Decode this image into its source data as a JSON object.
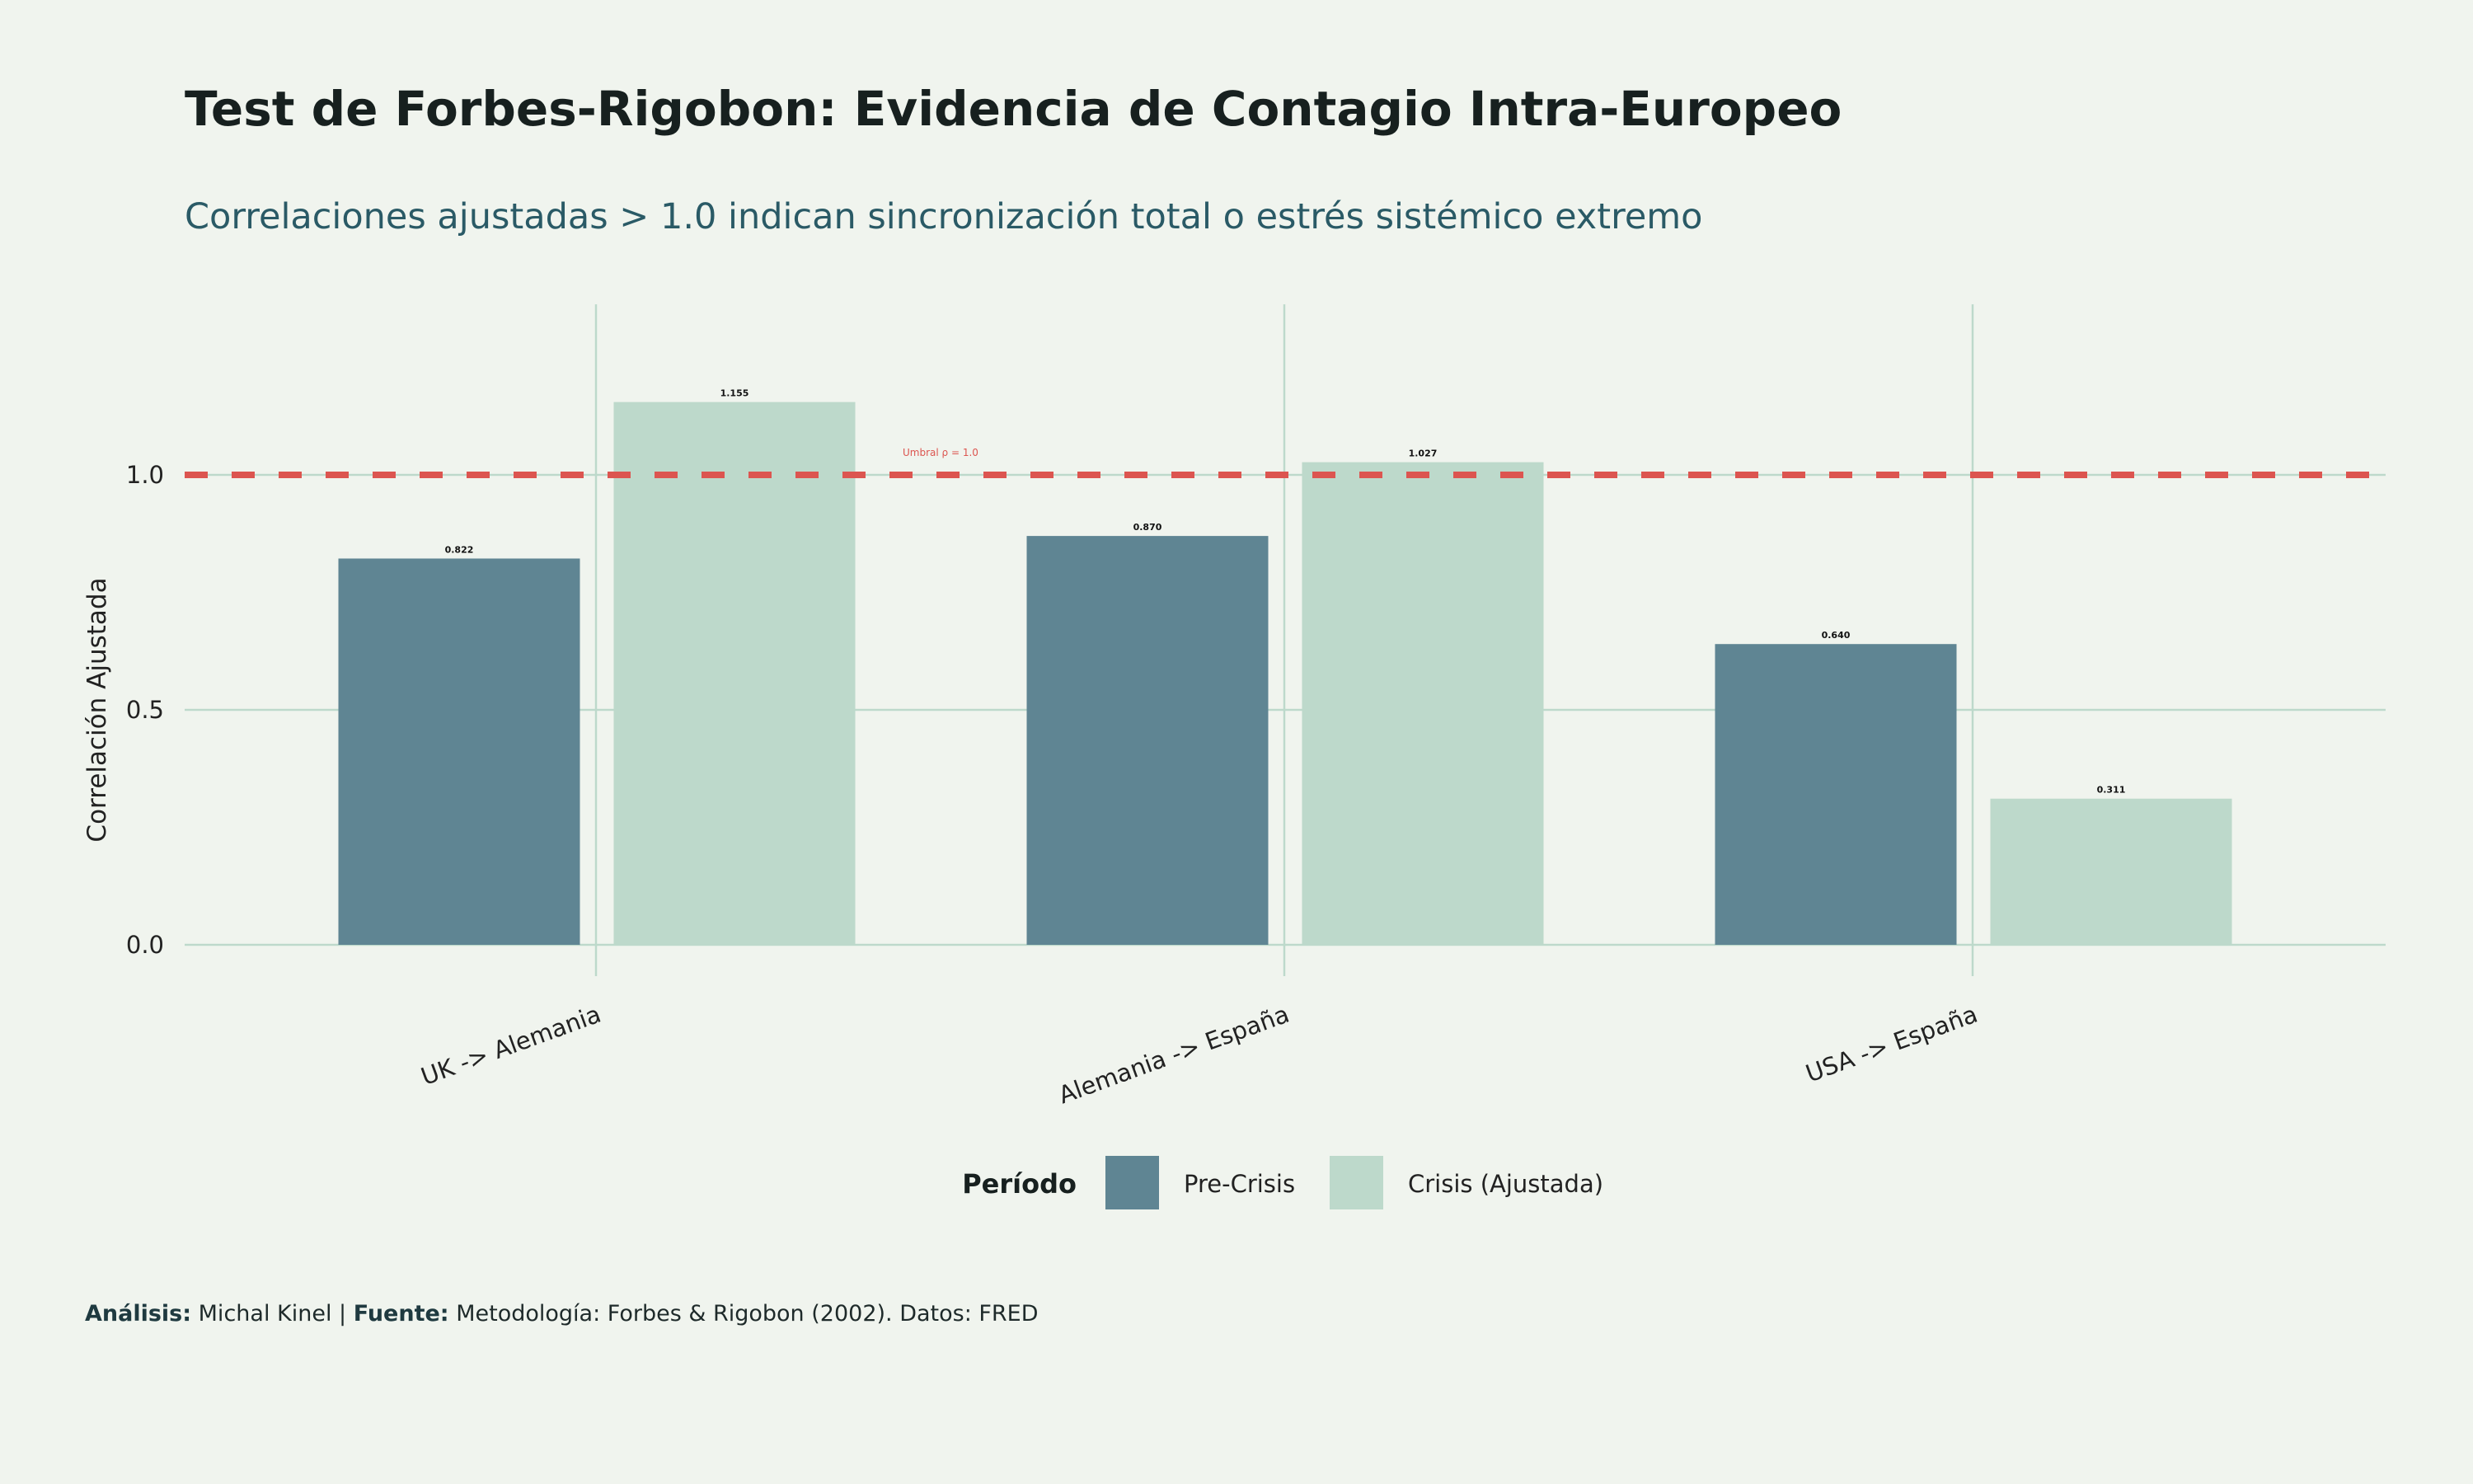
{
  "chart_data": {
    "type": "bar",
    "title": "Test de Forbes-Rigobon: Evidencia de Contagio Intra-Europeo",
    "subtitle": "Correlaciones ajustadas > 1.0 indican sincronización total o estrés sistémico extremo",
    "xlabel": "",
    "ylabel": "Correlación Ajustada",
    "categories": [
      "UK -> Alemania",
      "Alemania -> España",
      "USA -> España"
    ],
    "series": [
      {
        "name": "Pre-Crisis",
        "color": "#5f8593",
        "values": [
          0.822,
          0.87,
          0.64
        ],
        "labels": [
          "0.822",
          "0.870",
          "0.640"
        ]
      },
      {
        "name": "Crisis (Ajustada)",
        "color": "#bdd9cb",
        "values": [
          1.155,
          1.027,
          0.311
        ],
        "labels": [
          "1.155",
          "1.027",
          "0.311"
        ]
      }
    ],
    "yticks": [
      0.0,
      0.5,
      1.0
    ],
    "ytick_labels": [
      "0.0",
      "0.5",
      "1.0"
    ],
    "ylim": [
      0,
      1.363
    ],
    "grid": true,
    "threshold": {
      "value": 1.0,
      "label": "Umbral ρ = 1.0",
      "color": "#dc5550"
    },
    "legend": {
      "title": "Período",
      "placement": "bottom"
    }
  },
  "caption": {
    "analysis_label": "Análisis:",
    "analysis_value": "Michal Kinel |",
    "source_label": "Fuente:",
    "source_value": "Metodología: Forbes & Rigobon (2002). Datos: FRED"
  }
}
